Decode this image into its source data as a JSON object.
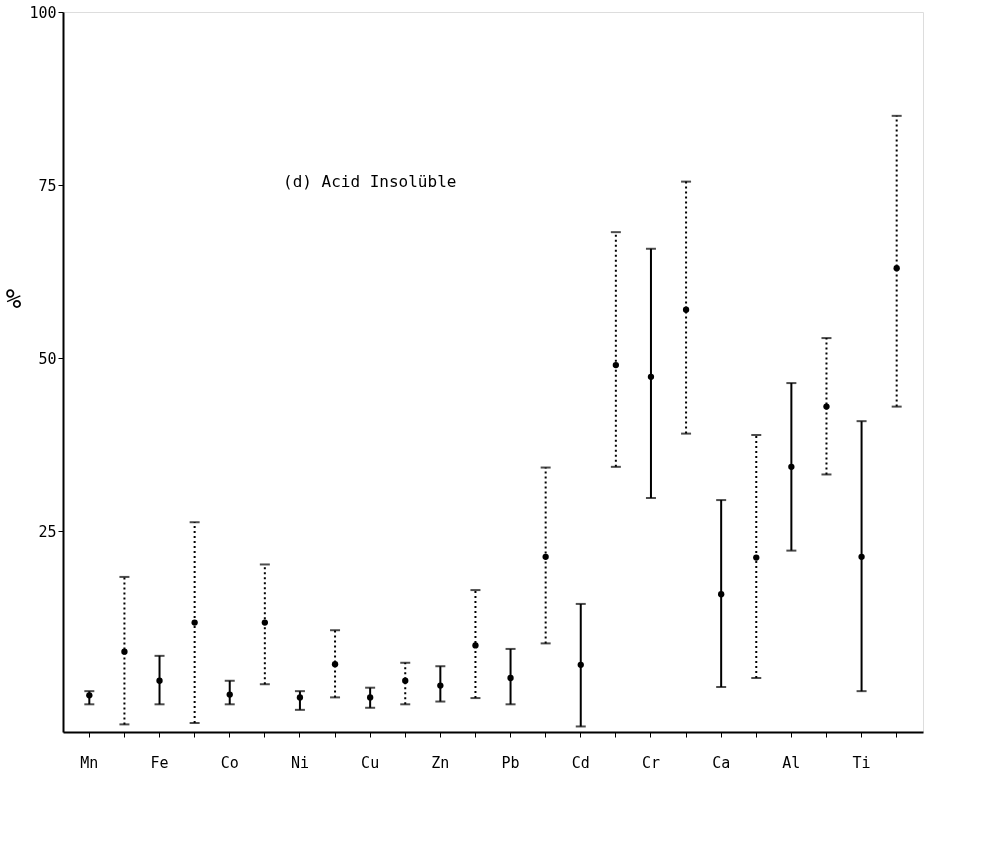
{
  "chart_data": {
    "type": "scatter",
    "annotations": [
      "(d) Acid Insolüble"
    ],
    "ylabel": "%",
    "categories": [
      "Mn",
      null,
      "Fe",
      null,
      "Co",
      null,
      "Ni",
      null,
      "Cu",
      null,
      "Zn",
      null,
      "Pb",
      null,
      "Cd",
      null,
      "Cr",
      null,
      "Ca",
      null,
      "Al",
      null,
      "Ti",
      null
    ],
    "series": [
      {
        "color": "#000000",
        "line_style": "solid",
        "marker": "circle",
        "values": [
          1.3,
          null,
          3.4,
          null,
          1.4,
          null,
          1.0,
          null,
          1.0,
          null,
          2.7,
          null,
          3.8,
          null,
          5.7,
          null,
          47.3,
          null,
          15.9,
          null,
          34.3,
          null,
          21.3,
          null
        ],
        "errors": [
          [
            0,
            1.9
          ],
          null,
          [
            0,
            7.0
          ],
          null,
          [
            0,
            3.4
          ],
          null,
          [
            -0.8,
            1.9
          ],
          null,
          [
            -0.5,
            2.4
          ],
          null,
          [
            0.4,
            5.5
          ],
          null,
          [
            0,
            8.0
          ],
          null,
          [
            -3.2,
            14.5
          ],
          null,
          [
            29.8,
            65.8
          ],
          null,
          [
            2.5,
            29.5
          ],
          null,
          [
            22.2,
            46.4
          ],
          null,
          [
            1.9,
            40.9
          ],
          null
        ]
      },
      {
        "color": "#000000",
        "line_style": "dotted",
        "marker": "circle",
        "values": [
          null,
          7.6,
          null,
          11.8,
          null,
          11.8,
          null,
          5.8,
          null,
          3.4,
          null,
          8.5,
          null,
          21.3,
          null,
          49.0,
          null,
          57.0,
          null,
          21.2,
          null,
          43.0,
          null,
          63.0
        ],
        "errors": [
          null,
          [
            -2.9,
            18.4
          ],
          null,
          [
            -2.7,
            26.3
          ],
          null,
          [
            2.9,
            20.2
          ],
          null,
          [
            1.0,
            10.7
          ],
          null,
          [
            0,
            6.0
          ],
          null,
          [
            0.9,
            16.5
          ],
          null,
          [
            8.8,
            34.2
          ],
          null,
          [
            34.3,
            68.2
          ],
          null,
          [
            39.1,
            75.5
          ],
          null,
          [
            3.8,
            38.9
          ],
          null,
          [
            33.2,
            52.9
          ],
          null,
          [
            43.0,
            85.0
          ]
        ]
      }
    ],
    "ylim": [
      -4,
      100
    ],
    "yticks": [
      25,
      50,
      75,
      100
    ],
    "grid": false
  }
}
